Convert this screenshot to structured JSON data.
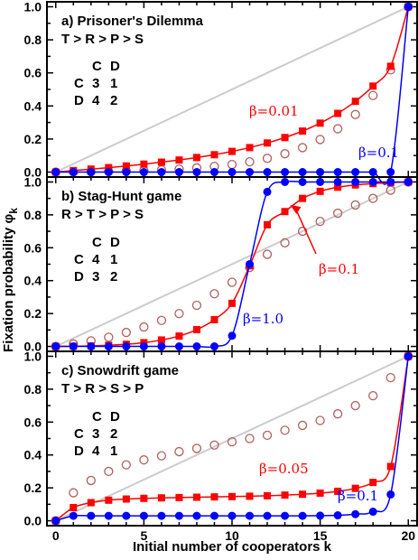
{
  "chart_data": {
    "type": "line",
    "xlabel": "Initial number of cooperators k",
    "ylabel": "Fixation probability φ",
    "ylabel_sub": "k",
    "xlim": [
      -0.5,
      20.5
    ],
    "ylim": [
      -0.03,
      1.03
    ],
    "xticks": [
      0,
      5,
      10,
      15,
      20
    ],
    "yticks": [
      0.0,
      0.2,
      0.4,
      0.6,
      0.8,
      1.0
    ],
    "ytick_labels": [
      "0.0",
      "0.2",
      "0.4",
      "0.6",
      "0.8",
      "1.0"
    ],
    "colors": {
      "neutral": "#cccccc",
      "beta_low": "#ff0000",
      "beta_high": "#0000ff",
      "open_circles": "#b06060"
    },
    "panels": [
      {
        "title": "a) Prisoner's Dilemma",
        "condition": "T > R > P > S",
        "payoff": {
          "cols": [
            "C",
            "D"
          ],
          "rows": [
            [
              "C",
              "3",
              "1"
            ],
            [
              "D",
              "4",
              "2"
            ]
          ]
        },
        "x": [
          0,
          1,
          2,
          3,
          4,
          5,
          6,
          7,
          8,
          9,
          10,
          11,
          12,
          13,
          14,
          15,
          16,
          17,
          18,
          19,
          20
        ],
        "series": [
          {
            "name": "β=0.01",
            "values": [
              0,
              0.009,
              0.018,
              0.027,
              0.037,
              0.048,
              0.06,
              0.073,
              0.088,
              0.105,
              0.125,
              0.148,
              0.176,
              0.209,
              0.248,
              0.296,
              0.355,
              0.428,
              0.52,
              0.64,
              1.0
            ]
          },
          {
            "values": [
              0,
              0.001,
              0.002,
              0.004,
              0.006,
              0.009,
              0.013,
              0.018,
              0.025,
              0.034,
              0.046,
              0.062,
              0.083,
              0.111,
              0.148,
              0.197,
              0.262,
              0.348,
              0.463,
              0.618,
              1.0
            ]
          },
          {
            "name": "β=0.1",
            "values": [
              0,
              0,
              0,
              0,
              0,
              0,
              0,
              0,
              0,
              0,
              0,
              0,
              0,
              0,
              0,
              0,
              0,
              0,
              0,
              0,
              1.0
            ]
          }
        ],
        "labels": [
          {
            "text": "β=0.01",
            "series": 0
          },
          {
            "text": "β=0.1",
            "series": 2
          }
        ]
      },
      {
        "title": "b) Stag-Hunt game",
        "condition": "R > T > P > S",
        "payoff": {
          "cols": [
            "C",
            "D"
          ],
          "rows": [
            [
              "C",
              "4",
              "1"
            ],
            [
              "D",
              "3",
              "2"
            ]
          ]
        },
        "x": [
          0,
          1,
          2,
          3,
          4,
          5,
          6,
          7,
          8,
          9,
          10,
          11,
          12,
          13,
          14,
          15,
          16,
          17,
          18,
          19,
          20
        ],
        "series": [
          {
            "name": "β=0.1",
            "values": [
              0,
              0.001,
              0.003,
              0.007,
              0.013,
              0.023,
              0.039,
              0.063,
              0.102,
              0.163,
              0.262,
              0.49,
              0.74,
              0.82,
              0.9,
              0.943,
              0.968,
              0.982,
              0.99,
              0.996,
              1.0
            ]
          },
          {
            "values": [
              0,
              0.015,
              0.034,
              0.056,
              0.085,
              0.118,
              0.158,
              0.2,
              0.25,
              0.32,
              0.39,
              0.48,
              0.56,
              0.63,
              0.7,
              0.76,
              0.81,
              0.86,
              0.9,
              0.95,
              1.0
            ]
          },
          {
            "name": "β=1.0",
            "values": [
              0,
              0,
              0,
              0,
              0,
              0,
              0,
              0,
              0,
              0,
              0.065,
              0.5,
              0.94,
              1.0,
              1.0,
              1.0,
              1.0,
              1.0,
              1.0,
              1.0,
              1.0
            ]
          }
        ],
        "labels": [
          {
            "text": "β=0.1",
            "series": 0
          },
          {
            "text": "β=1.0",
            "series": 2
          }
        ]
      },
      {
        "title": "c) Snowdrift game",
        "condition": "T > R > S > P",
        "payoff": {
          "cols": [
            "C",
            "D"
          ],
          "rows": [
            [
              "C",
              "3",
              "2"
            ],
            [
              "D",
              "4",
              "1"
            ]
          ]
        },
        "x": [
          0,
          1,
          2,
          3,
          4,
          5,
          6,
          7,
          8,
          9,
          10,
          11,
          12,
          13,
          14,
          15,
          16,
          17,
          18,
          19,
          20
        ],
        "series": [
          {
            "name": "β=0.05",
            "values": [
              0,
              0.08,
              0.11,
              0.125,
              0.132,
              0.136,
              0.139,
              0.141,
              0.143,
              0.145,
              0.147,
              0.149,
              0.152,
              0.156,
              0.161,
              0.168,
              0.179,
              0.197,
              0.233,
              0.33,
              1.0
            ]
          },
          {
            "values": [
              0,
              0.17,
              0.245,
              0.3,
              0.34,
              0.37,
              0.395,
              0.42,
              0.44,
              0.46,
              0.48,
              0.5,
              0.52,
              0.55,
              0.58,
              0.61,
              0.65,
              0.7,
              0.76,
              0.87,
              1.0
            ]
          },
          {
            "name": "β=0.1",
            "values": [
              0,
              0.03,
              0.03,
              0.03,
              0.03,
              0.03,
              0.03,
              0.03,
              0.03,
              0.03,
              0.03,
              0.03,
              0.03,
              0.03,
              0.03,
              0.031,
              0.033,
              0.04,
              0.055,
              0.16,
              1.0
            ]
          }
        ],
        "labels": [
          {
            "text": "β=0.05",
            "series": 0
          },
          {
            "text": "β=0.1",
            "series": 2
          }
        ]
      }
    ]
  }
}
